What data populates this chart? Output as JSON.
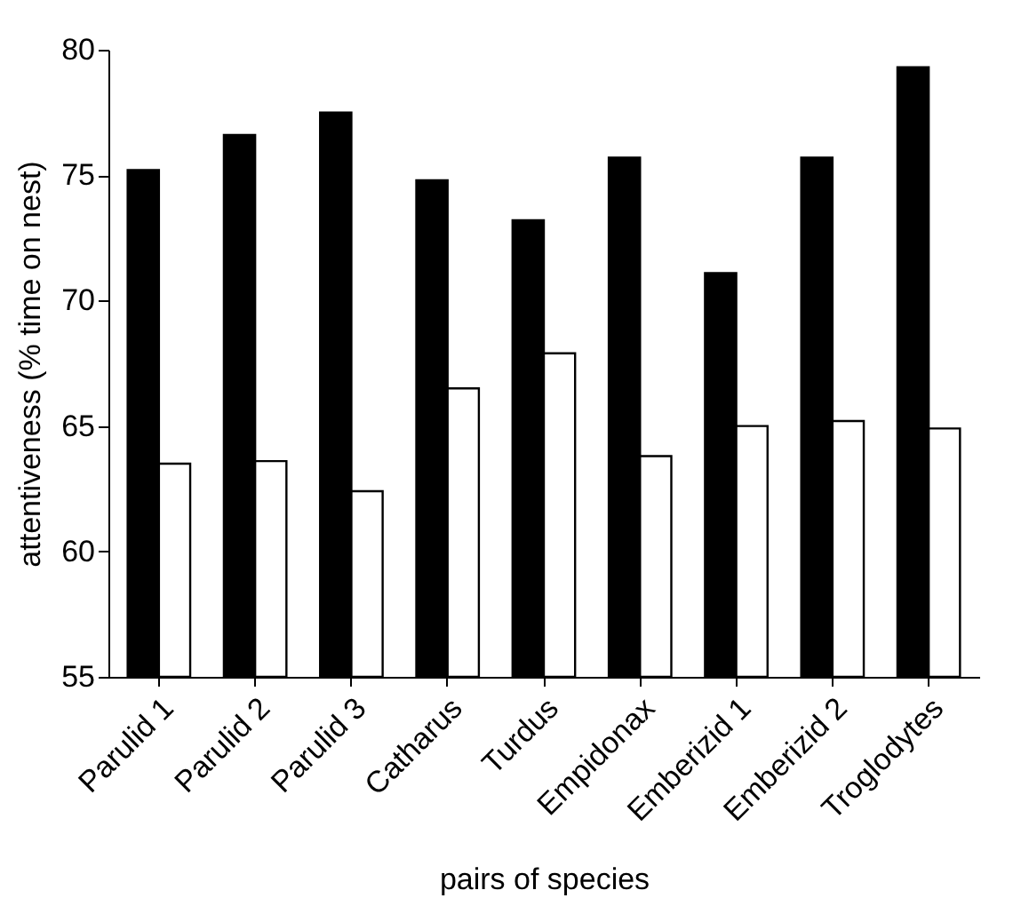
{
  "chart_data": {
    "type": "bar",
    "xlabel": "pairs of species",
    "ylabel": "attentiveness (% time on nest)",
    "categories": [
      "Parulid 1",
      "Parulid 2",
      "Parulid 3",
      "Catharus",
      "Turdus",
      "Empidonax",
      "Emberizid 1",
      "Emberizid 2",
      "Troglodytes"
    ],
    "series": [
      {
        "color": "#000000",
        "values": [
          75.2,
          76.6,
          77.5,
          74.8,
          73.2,
          75.7,
          71.1,
          75.7,
          79.3
        ]
      },
      {
        "color": "#ffffff",
        "values": [
          63.5,
          63.6,
          62.4,
          66.5,
          67.9,
          63.8,
          65.0,
          65.2,
          64.9
        ]
      }
    ],
    "ylim": [
      55,
      80
    ],
    "yticks": [
      55,
      60,
      65,
      70,
      75,
      80
    ],
    "grid": false,
    "legend": false
  }
}
